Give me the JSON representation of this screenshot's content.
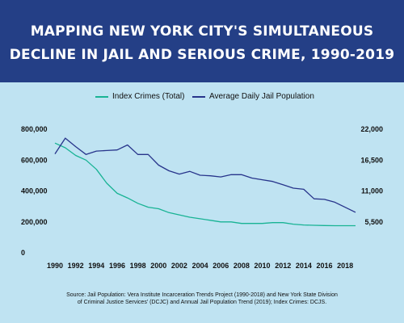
{
  "title_line1": "MAPPING NEW YORK CITY'S SIMULTANEOUS",
  "title_line2": "DECLINE IN JAIL AND SERIOUS CRIME, 1990-2019",
  "source_line1": "Source: Jail Population: Vera Institute Incarceration Trends Project (1990-2018) and New York State Division",
  "source_line2": "of Criminal Justice Services' (DCJC) and Annual Jail Population Trend (2019); Index Crimes: DCJS.",
  "colors": {
    "header_bg": "#243f86",
    "background": "#bfe3f2",
    "index_crimes": "#18b394",
    "jail_population": "#27348b"
  },
  "chart_data": {
    "type": "line",
    "title": "MAPPING NEW YORK CITY'S SIMULTANEOUS DECLINE IN JAIL AND SERIOUS CRIME, 1990-2019",
    "legend_position": "top-center",
    "grid": false,
    "x": [
      1990,
      1991,
      1992,
      1993,
      1994,
      1995,
      1996,
      1997,
      1998,
      1999,
      2000,
      2001,
      2002,
      2003,
      2004,
      2005,
      2006,
      2007,
      2008,
      2009,
      2010,
      2011,
      2012,
      2013,
      2014,
      2015,
      2016,
      2017,
      2018,
      2019
    ],
    "x_ticks": [
      "1990",
      "1992",
      "1994",
      "1996",
      "1998",
      "2000",
      "2002",
      "2004",
      "2006",
      "2008",
      "2010",
      "2012",
      "2014",
      "2016",
      "2018"
    ],
    "left_axis": {
      "ticks": [
        "800,000",
        "600,000",
        "400,000",
        "200,000",
        "0"
      ],
      "ylim": [
        0,
        800000
      ]
    },
    "right_axis": {
      "ticks": [
        "22,000",
        "16,500",
        "11,000",
        "5,500"
      ],
      "ylim": [
        0,
        22000
      ]
    },
    "series": [
      {
        "name": "Index Crimes (Total)",
        "axis": "left",
        "values": [
          710000,
          680000,
          630000,
          600000,
          540000,
          450000,
          385000,
          355000,
          320000,
          295000,
          285000,
          260000,
          245000,
          230000,
          220000,
          210000,
          200000,
          200000,
          190000,
          190000,
          190000,
          195000,
          195000,
          185000,
          180000,
          178000,
          176000,
          175000,
          175000,
          175000
        ]
      },
      {
        "name": "Average Daily Jail Population",
        "axis": "right",
        "values": [
          17600,
          20400,
          18900,
          17500,
          18100,
          18200,
          18300,
          19200,
          17500,
          17500,
          15600,
          14600,
          14000,
          14500,
          13800,
          13700,
          13500,
          13900,
          13900,
          13300,
          13000,
          12700,
          12100,
          11500,
          11300,
          9600,
          9500,
          9000,
          8100,
          7200
        ]
      }
    ]
  }
}
